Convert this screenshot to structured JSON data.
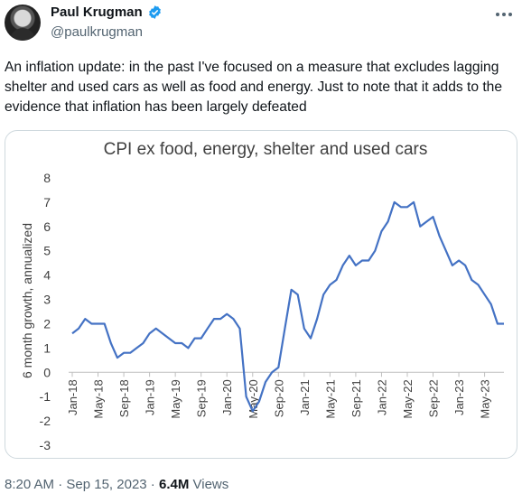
{
  "author": {
    "name": "Paul Krugman",
    "handle": "@paulkrugman",
    "verified_icon": "verified-badge-icon"
  },
  "tweet": {
    "text": "An inflation update: in the past I've focused on a measure that excludes lagging shelter and used cars as well as food and energy. Just to note that it adds to the evidence that inflation has been largely defeated"
  },
  "meta": {
    "time": "8:20 AM",
    "date": "Sep 15, 2023",
    "views_count": "6.4M",
    "views_label": "Views"
  },
  "colors": {
    "line": "#4472c4",
    "accent": "#1d9bf0"
  },
  "chart_data": {
    "type": "line",
    "title": "CPI ex food, energy, shelter and used cars",
    "ylabel": "6 month growth, annualized",
    "xlabel": "",
    "ylim": [
      -3,
      8
    ],
    "yticks": [
      -3,
      -2,
      -1,
      0,
      1,
      2,
      3,
      4,
      5,
      6,
      7,
      8
    ],
    "xticks": [
      "Jan-18",
      "May-18",
      "Sep-18",
      "Jan-19",
      "May-19",
      "Sep-19",
      "Jan-20",
      "May-20",
      "Sep-20",
      "Jan-21",
      "May-21",
      "Sep-21",
      "Jan-22",
      "May-22",
      "Sep-22",
      "Jan-23",
      "May-23"
    ],
    "grid": false,
    "series": [
      {
        "x": [
          "Jan-18",
          "Feb-18",
          "Mar-18",
          "Apr-18",
          "May-18",
          "Jun-18",
          "Jul-18",
          "Aug-18",
          "Sep-18",
          "Oct-18",
          "Nov-18",
          "Dec-18",
          "Jan-19",
          "Feb-19",
          "Mar-19",
          "Apr-19",
          "May-19",
          "Jun-19",
          "Jul-19",
          "Aug-19",
          "Sep-19",
          "Oct-19",
          "Nov-19",
          "Dec-19",
          "Jan-20",
          "Feb-20",
          "Mar-20",
          "Apr-20",
          "May-20",
          "Jun-20",
          "Jul-20",
          "Aug-20",
          "Sep-20",
          "Oct-20",
          "Nov-20",
          "Dec-20",
          "Jan-21",
          "Feb-21",
          "Mar-21",
          "Apr-21",
          "May-21",
          "Jun-21",
          "Jul-21",
          "Aug-21",
          "Sep-21",
          "Oct-21",
          "Nov-21",
          "Dec-21",
          "Jan-22",
          "Feb-22",
          "Mar-22",
          "Apr-22",
          "May-22",
          "Jun-22",
          "Jul-22",
          "Aug-22",
          "Sep-22",
          "Oct-22",
          "Nov-22",
          "Dec-22",
          "Jan-23",
          "Feb-23",
          "Mar-23",
          "Apr-23",
          "May-23",
          "Jun-23",
          "Jul-23",
          "Aug-23"
        ],
        "values": [
          1.6,
          1.8,
          2.2,
          2.0,
          2.0,
          2.0,
          1.2,
          0.6,
          0.8,
          0.8,
          1.0,
          1.2,
          1.6,
          1.8,
          1.6,
          1.4,
          1.2,
          1.2,
          1.0,
          1.4,
          1.4,
          1.8,
          2.2,
          2.2,
          2.4,
          2.2,
          1.8,
          -1.0,
          -1.6,
          -1.2,
          -0.4,
          0.0,
          0.2,
          1.8,
          3.4,
          3.2,
          1.8,
          1.4,
          2.2,
          3.2,
          3.6,
          3.8,
          4.4,
          4.8,
          4.4,
          4.6,
          4.6,
          5.0,
          5.8,
          6.2,
          7.0,
          6.8,
          6.8,
          7.0,
          6.0,
          6.2,
          6.4,
          5.6,
          5.0,
          4.4,
          4.6,
          4.4,
          3.8,
          3.6,
          3.2,
          2.8,
          2.0,
          2.0
        ]
      }
    ]
  }
}
